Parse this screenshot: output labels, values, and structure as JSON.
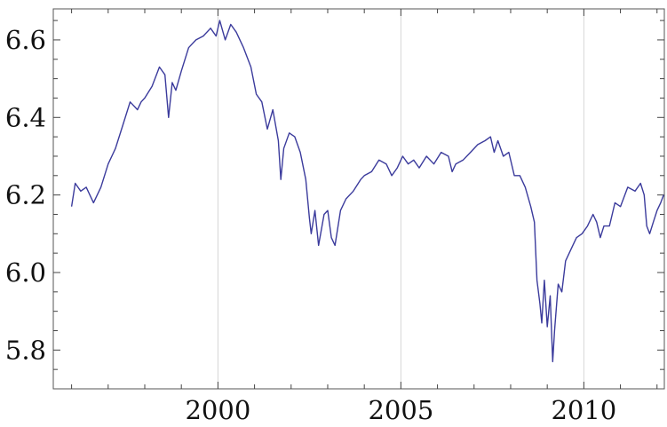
{
  "chart_data": {
    "type": "line",
    "title": "",
    "xlabel": "",
    "ylabel": "",
    "grid": "vertical lines at labeled years",
    "xlim": [
      1995.5,
      2012.2
    ],
    "ylim": [
      5.7,
      6.68
    ],
    "x_ticks": [
      {
        "value": 2000,
        "label": "2000"
      },
      {
        "value": 2005,
        "label": "2005"
      },
      {
        "value": 2010,
        "label": "2010"
      }
    ],
    "x_minor_ticks": [
      1996,
      1997,
      1998,
      1999,
      2001,
      2002,
      2003,
      2004,
      2006,
      2007,
      2008,
      2009,
      2011,
      2012
    ],
    "y_ticks": [
      {
        "value": 5.8,
        "label": "5.8"
      },
      {
        "value": 6.0,
        "label": "6.0"
      },
      {
        "value": 6.2,
        "label": "6.2"
      },
      {
        "value": 6.4,
        "label": "6.4"
      },
      {
        "value": 6.6,
        "label": "6.6"
      }
    ],
    "y_minor_ticks": [
      5.75,
      5.85,
      5.9,
      5.95,
      6.05,
      6.1,
      6.15,
      6.25,
      6.3,
      6.35,
      6.45,
      6.5,
      6.55,
      6.65
    ],
    "color": "#3b3b9c",
    "series": [
      {
        "x": [
          1996.0,
          1996.1,
          1996.25,
          1996.4,
          1996.6,
          1996.8,
          1997.0,
          1997.2,
          1997.4,
          1997.6,
          1997.8,
          1997.9,
          1998.0,
          1998.2,
          1998.4,
          1998.55,
          1998.65,
          1998.75,
          1998.85,
          1999.0,
          1999.2,
          1999.4,
          1999.6,
          1999.8,
          1999.95,
          2000.05,
          2000.2,
          2000.35,
          2000.5,
          2000.7,
          2000.9,
          2001.05,
          2001.2,
          2001.35,
          2001.5,
          2001.65,
          2001.72,
          2001.8,
          2001.95,
          2002.1,
          2002.25,
          2002.4,
          2002.5,
          2002.55,
          2002.65,
          2002.75,
          2002.9,
          2003.0,
          2003.1,
          2003.2,
          2003.35,
          2003.5,
          2003.7,
          2003.9,
          2004.0,
          2004.2,
          2004.4,
          2004.6,
          2004.75,
          2004.9,
          2005.05,
          2005.2,
          2005.35,
          2005.5,
          2005.7,
          2005.9,
          2006.1,
          2006.3,
          2006.4,
          2006.5,
          2006.7,
          2006.9,
          2007.1,
          2007.3,
          2007.45,
          2007.55,
          2007.65,
          2007.8,
          2007.95,
          2008.1,
          2008.25,
          2008.4,
          2008.55,
          2008.65,
          2008.72,
          2008.8,
          2008.85,
          2008.92,
          2009.0,
          2009.08,
          2009.15,
          2009.2,
          2009.3,
          2009.4,
          2009.5,
          2009.65,
          2009.8,
          2009.95,
          2010.1,
          2010.25,
          2010.35,
          2010.45,
          2010.55,
          2010.7,
          2010.85,
          2011.0,
          2011.2,
          2011.4,
          2011.55,
          2011.65,
          2011.72,
          2011.8,
          2011.9,
          2012.0,
          2012.1,
          2012.18
        ],
        "values": [
          6.17,
          6.23,
          6.21,
          6.22,
          6.18,
          6.22,
          6.28,
          6.32,
          6.38,
          6.44,
          6.42,
          6.44,
          6.45,
          6.48,
          6.53,
          6.51,
          6.4,
          6.49,
          6.47,
          6.52,
          6.58,
          6.6,
          6.61,
          6.63,
          6.61,
          6.65,
          6.6,
          6.64,
          6.62,
          6.58,
          6.53,
          6.46,
          6.44,
          6.37,
          6.42,
          6.34,
          6.24,
          6.32,
          6.36,
          6.35,
          6.31,
          6.24,
          6.14,
          6.1,
          6.16,
          6.07,
          6.15,
          6.16,
          6.09,
          6.07,
          6.16,
          6.19,
          6.21,
          6.24,
          6.25,
          6.26,
          6.29,
          6.28,
          6.25,
          6.27,
          6.3,
          6.28,
          6.29,
          6.27,
          6.3,
          6.28,
          6.31,
          6.3,
          6.26,
          6.28,
          6.29,
          6.31,
          6.33,
          6.34,
          6.35,
          6.31,
          6.34,
          6.3,
          6.31,
          6.25,
          6.25,
          6.22,
          6.17,
          6.13,
          5.98,
          5.92,
          5.87,
          5.98,
          5.86,
          5.94,
          5.77,
          5.85,
          5.97,
          5.95,
          6.03,
          6.06,
          6.09,
          6.1,
          6.12,
          6.15,
          6.13,
          6.09,
          6.12,
          6.12,
          6.18,
          6.17,
          6.22,
          6.21,
          6.23,
          6.2,
          6.12,
          6.1,
          6.13,
          6.16,
          6.18,
          6.2
        ]
      }
    ]
  }
}
